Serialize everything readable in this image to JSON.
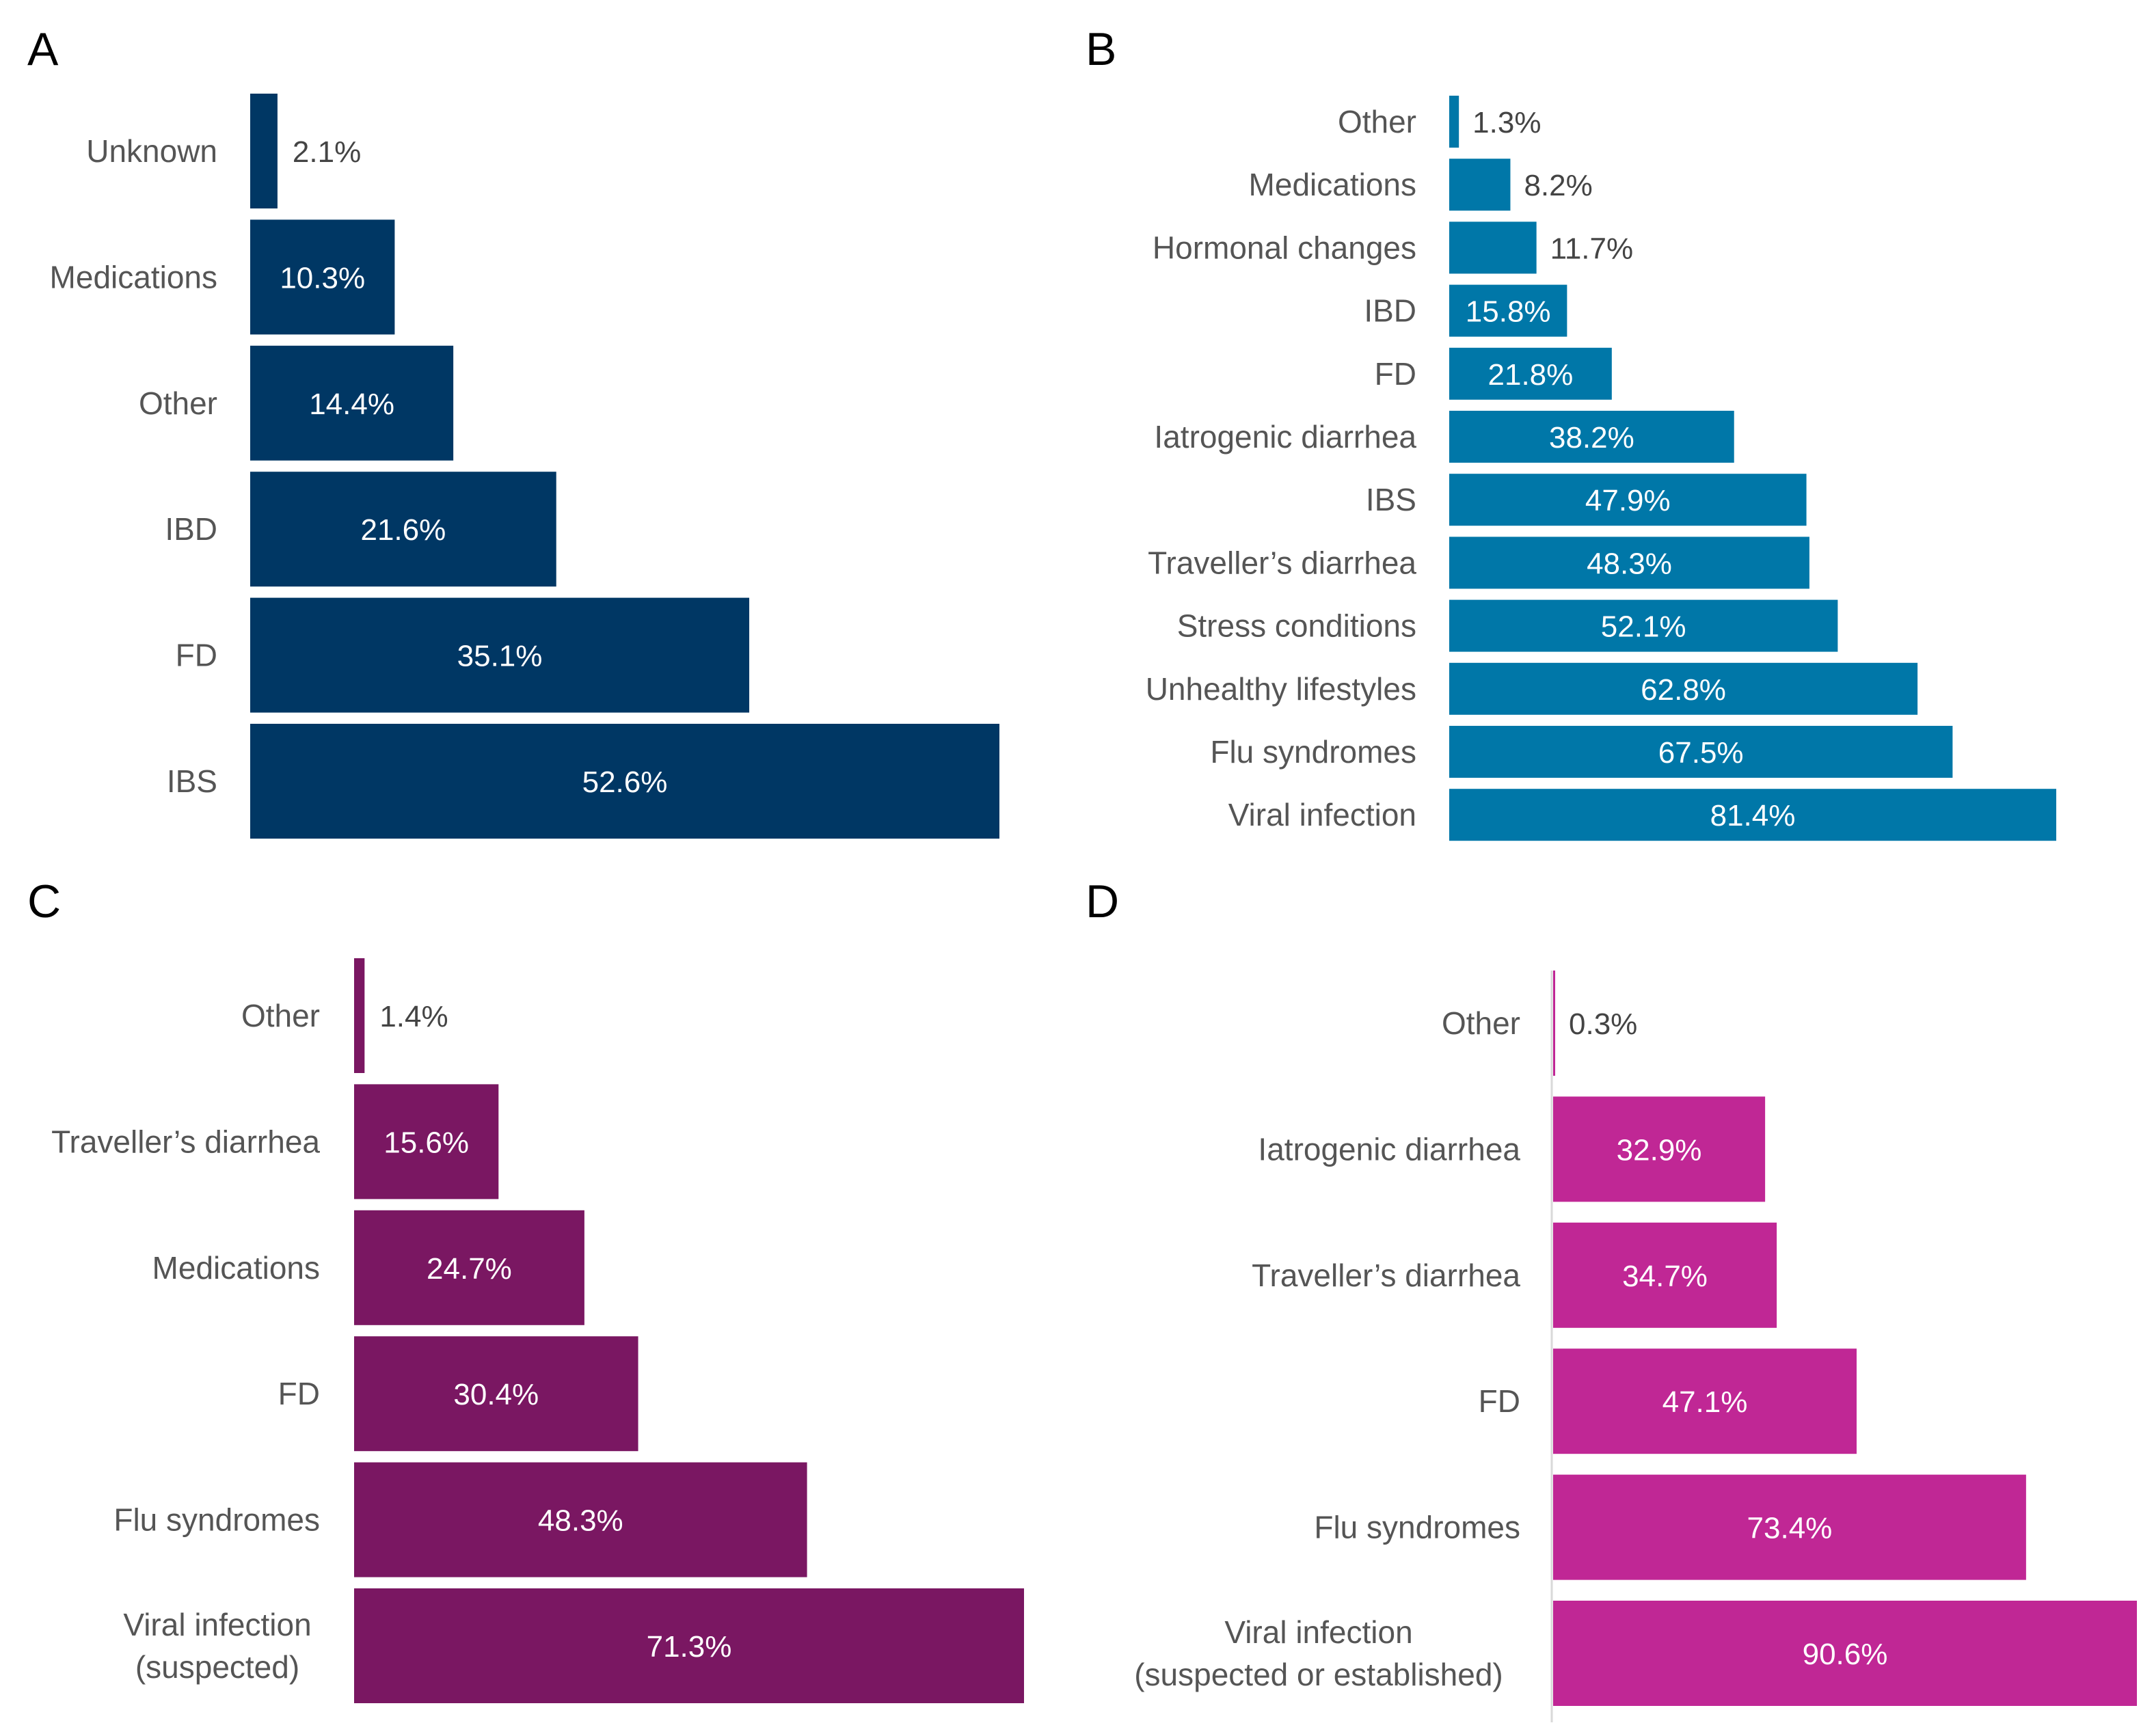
{
  "chart_data": [
    {
      "panel": "A",
      "type": "bar",
      "orientation": "horizontal",
      "color": "#003764",
      "categories": [
        "Unknown",
        "Medications",
        "Other",
        "IBD",
        "FD",
        "IBS"
      ],
      "values": [
        2.1,
        10.3,
        14.4,
        21.6,
        35.1,
        52.6
      ],
      "value_labels": [
        "2.1%",
        "10.3%",
        "14.4%",
        "21.6%",
        "35.1%",
        "52.6%"
      ],
      "xlim": [
        0,
        52.6
      ]
    },
    {
      "panel": "B",
      "type": "bar",
      "orientation": "horizontal",
      "color": "#0077A8",
      "categories": [
        "Other",
        "Medications",
        "Hormonal changes",
        "IBD",
        "FD",
        "Iatrogenic diarrhea",
        "IBS",
        "Traveller’s diarrhea",
        "Stress conditions",
        "Unhealthy lifestyles",
        "Flu syndromes",
        "Viral infection"
      ],
      "values": [
        1.3,
        8.2,
        11.7,
        15.8,
        21.8,
        38.2,
        47.9,
        48.3,
        52.1,
        62.8,
        67.5,
        81.4
      ],
      "value_labels": [
        "1.3%",
        "8.2%",
        "11.7%",
        "15.8%",
        "21.8%",
        "38.2%",
        "47.9%",
        "48.3%",
        "52.1%",
        "62.8%",
        "67.5%",
        "81.4%"
      ],
      "xlim": [
        0,
        81.4
      ]
    },
    {
      "panel": "C",
      "type": "bar",
      "orientation": "horizontal",
      "color": "#7A1762",
      "categories": [
        "Other",
        "Traveller’s diarrhea",
        "Medications",
        "FD",
        "Flu syndromes",
        [
          "Viral infection",
          "(suspected)"
        ]
      ],
      "values": [
        1.4,
        15.6,
        24.7,
        30.4,
        48.3,
        71.3
      ],
      "value_labels": [
        "1.4%",
        "15.6%",
        "24.7%",
        "30.4%",
        "48.3%",
        "71.3%"
      ],
      "xlim": [
        0,
        71.3
      ]
    },
    {
      "panel": "D",
      "type": "bar",
      "orientation": "horizontal",
      "color": "#C02795",
      "categories": [
        "Other",
        "Iatrogenic diarrhea",
        "Traveller’s diarrhea",
        "FD",
        "Flu syndromes",
        [
          "Viral infection",
          "(suspected or established)"
        ]
      ],
      "values": [
        0.3,
        32.9,
        34.7,
        47.1,
        73.4,
        90.6
      ],
      "value_labels": [
        "0.3%",
        "32.9%",
        "34.7%",
        "47.1%",
        "73.4%",
        "90.6%"
      ],
      "xlim": [
        0,
        90.6
      ]
    }
  ]
}
